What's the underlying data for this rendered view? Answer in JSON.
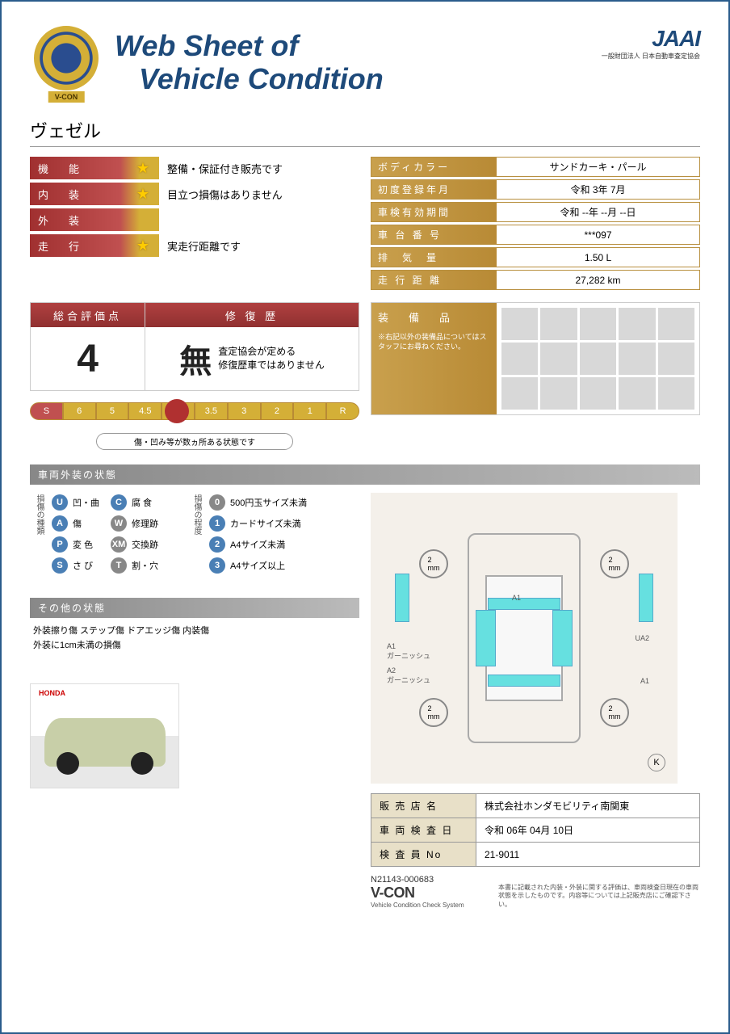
{
  "header": {
    "title_line1": "Web Sheet of",
    "title_line2": "Vehicle Condition",
    "badge_text": "V-CON",
    "brand": "JAAI",
    "brand_sub": "一般財団法人 日本自動車査定協会"
  },
  "vehicle_name": "ヴェゼル",
  "ratings": [
    {
      "label": "機　能",
      "star": true,
      "text": "整備・保証付き販売です"
    },
    {
      "label": "内　装",
      "star": true,
      "text": "目立つ損傷はありません"
    },
    {
      "label": "外　装",
      "star": false,
      "text": ""
    },
    {
      "label": "走　行",
      "star": true,
      "text": "実走行距離です"
    }
  ],
  "specs": [
    {
      "label": "ボディカラー",
      "value": "サンドカーキ・パール"
    },
    {
      "label": "初度登録年月",
      "value": "令和 3年 7月"
    },
    {
      "label": "車検有効期間",
      "value": "令和 --年 --月 --日"
    },
    {
      "label": "車 台 番 号",
      "value": "***097"
    },
    {
      "label": "排　気　量",
      "value": "1.50 L"
    },
    {
      "label": "走 行 距 離",
      "value": "27,282 km"
    }
  ],
  "score": {
    "head_left": "総合評価点",
    "head_right": "修 復 歴",
    "value": "4",
    "mu": "無",
    "mu_text_line1": "査定協会が定める",
    "mu_text_line2": "修復歴車ではありません"
  },
  "equipment": {
    "title": "装　備　品",
    "note": "※右記以外の装備品についてはスタッフにお尋ねください。"
  },
  "scale": {
    "segments": [
      "S",
      "6",
      "5",
      "4.5",
      "4",
      "3.5",
      "3",
      "2",
      "1",
      "R"
    ],
    "caption": "傷・凹み等が数ヵ所ある状態です"
  },
  "section_exterior": "車両外装の状態",
  "legend_type_label": "損傷の種類",
  "legend_types": [
    {
      "code": "U",
      "text": "凹・曲",
      "color": "c-blue"
    },
    {
      "code": "C",
      "text": "腐 食",
      "color": "c-blue"
    },
    {
      "code": "A",
      "text": "傷",
      "color": "c-blue"
    },
    {
      "code": "W",
      "text": "修理跡",
      "color": "c-gray"
    },
    {
      "code": "P",
      "text": "変 色",
      "color": "c-blue"
    },
    {
      "code": "XM",
      "text": "交換跡",
      "color": "c-gray"
    },
    {
      "code": "S",
      "text": "さ び",
      "color": "c-blue"
    },
    {
      "code": "T",
      "text": "割・穴",
      "color": "c-gray"
    }
  ],
  "legend_degree_label": "損傷の程度",
  "legend_degrees": [
    {
      "code": "0",
      "text": "500円玉サイズ未満",
      "color": "c-gray"
    },
    {
      "code": "1",
      "text": "カードサイズ未満",
      "color": "c-blue"
    },
    {
      "code": "2",
      "text": "A4サイズ未満",
      "color": "c-blue"
    },
    {
      "code": "3",
      "text": "A4サイズ以上",
      "color": "c-blue"
    }
  ],
  "section_other": "その他の状態",
  "other_notes": "外装擦り傷 ステップ傷 ドアエッジ傷 内装傷\n外装に1cm未満の損傷",
  "diagram": {
    "wheel_label": "2\nmm",
    "k": "K",
    "labels": {
      "a1_left": "A1\nガーニッシュ",
      "a2_left": "A2\nガーニッシュ",
      "ua2": "UA2",
      "a1_right": "A1",
      "a1_top": "A1"
    }
  },
  "dealer": [
    {
      "label": "販 売 店 名",
      "value": "株式会社ホンダモビリティ南関東"
    },
    {
      "label": "車 両 検 査 日",
      "value": "令和 06年 04月 10日"
    },
    {
      "label": "検 査 員 No",
      "value": "21-9011"
    }
  ],
  "footer": {
    "id": "N21143-000683",
    "logo": "V-CON",
    "logo_sub": "Vehicle Condition Check System",
    "note": "本書に記載された内装・外装に関する評価は、車両検査日現在の車両状態を示したものです。内容等については上記販売店にご確認下さい。"
  },
  "photo": {
    "brand": "HONDA"
  }
}
